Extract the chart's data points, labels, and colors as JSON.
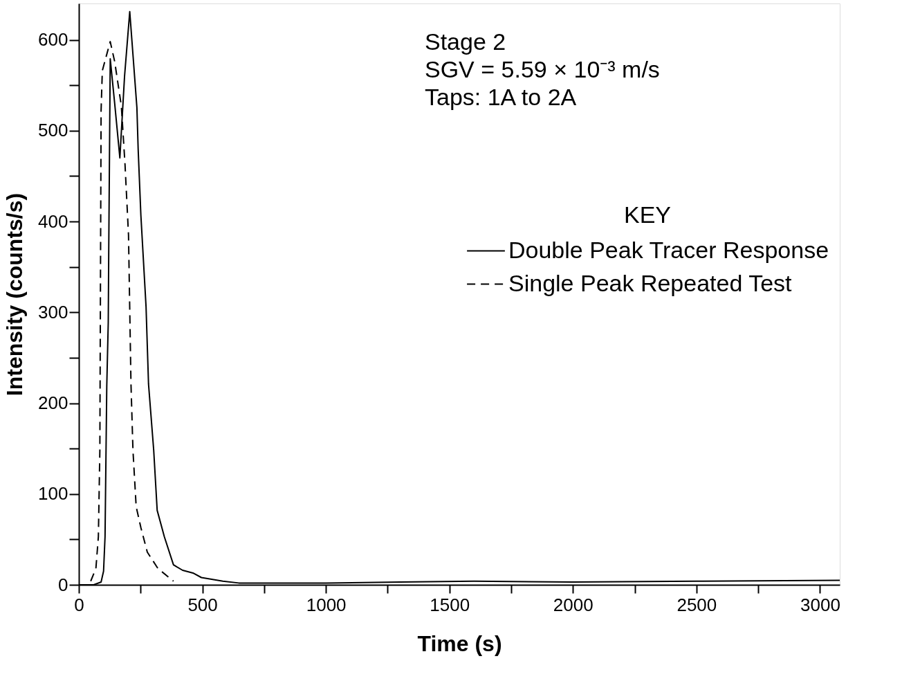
{
  "chart_data": {
    "type": "line",
    "xlabel": "Time (s)",
    "ylabel": "Intensity (counts/s)",
    "legend_title": "KEY",
    "legend": "right",
    "grid": false,
    "marker": "none",
    "annotations": [
      "Stage 2",
      "SGV = 5.59 × 10⁻³ m/s",
      "Taps: 1A to 2A"
    ],
    "xlim": [
      0,
      3080
    ],
    "ylim": [
      0,
      640
    ],
    "xticks": [
      0,
      {
        "value": 250,
        "label": null
      },
      500,
      {
        "value": 750,
        "label": null
      },
      1000,
      {
        "value": 1250,
        "label": null
      },
      1500,
      {
        "value": 1750,
        "label": null
      },
      2000,
      {
        "value": 2250,
        "label": null
      },
      2500,
      {
        "value": 2750,
        "label": null
      },
      3000
    ],
    "yticks": [
      0,
      {
        "value": 50,
        "label": null
      },
      100,
      {
        "value": 150,
        "label": null
      },
      200,
      {
        "value": 250,
        "label": null
      },
      300,
      {
        "value": 350,
        "label": null
      },
      400,
      {
        "value": 450,
        "label": null
      },
      500,
      {
        "value": 550,
        "label": null
      },
      600
    ],
    "series": [
      {
        "name": "Double Peak Tracer Response",
        "color": "#000000",
        "line_style": "solid",
        "x": [
          0,
          60,
          90,
          100,
          106,
          113,
          119,
          121,
          127,
          145,
          166,
          185,
          206,
          220,
          235,
          240,
          251,
          272,
          282,
          303,
          317,
          346,
          383,
          420,
          462,
          496,
          583,
          647,
          800,
          1000,
          1300,
          1600,
          2000,
          2500,
          3080
        ],
        "values": [
          0,
          0,
          3,
          15,
          53,
          219,
          289,
          369,
          579,
          530,
          470,
          560,
          631,
          580,
          525,
          480,
          407,
          306,
          221,
          148,
          82,
          53,
          22,
          16,
          13,
          8,
          4,
          2,
          2,
          2,
          3,
          4,
          3,
          4,
          5
        ]
      },
      {
        "name": "Single Peak Repeated Test",
        "color": "#000000",
        "line_style": "dashed",
        "x": [
          48,
          69,
          79,
          85,
          90,
          95,
          127,
          145,
          172,
          187,
          201,
          206,
          211,
          219,
          232,
          251,
          277,
          320,
          383
        ],
        "values": [
          4,
          18,
          53,
          148,
          522,
          566,
          598,
          576,
          527,
          462,
          385,
          303,
          221,
          148,
          86,
          63,
          36,
          18,
          4
        ]
      }
    ]
  }
}
